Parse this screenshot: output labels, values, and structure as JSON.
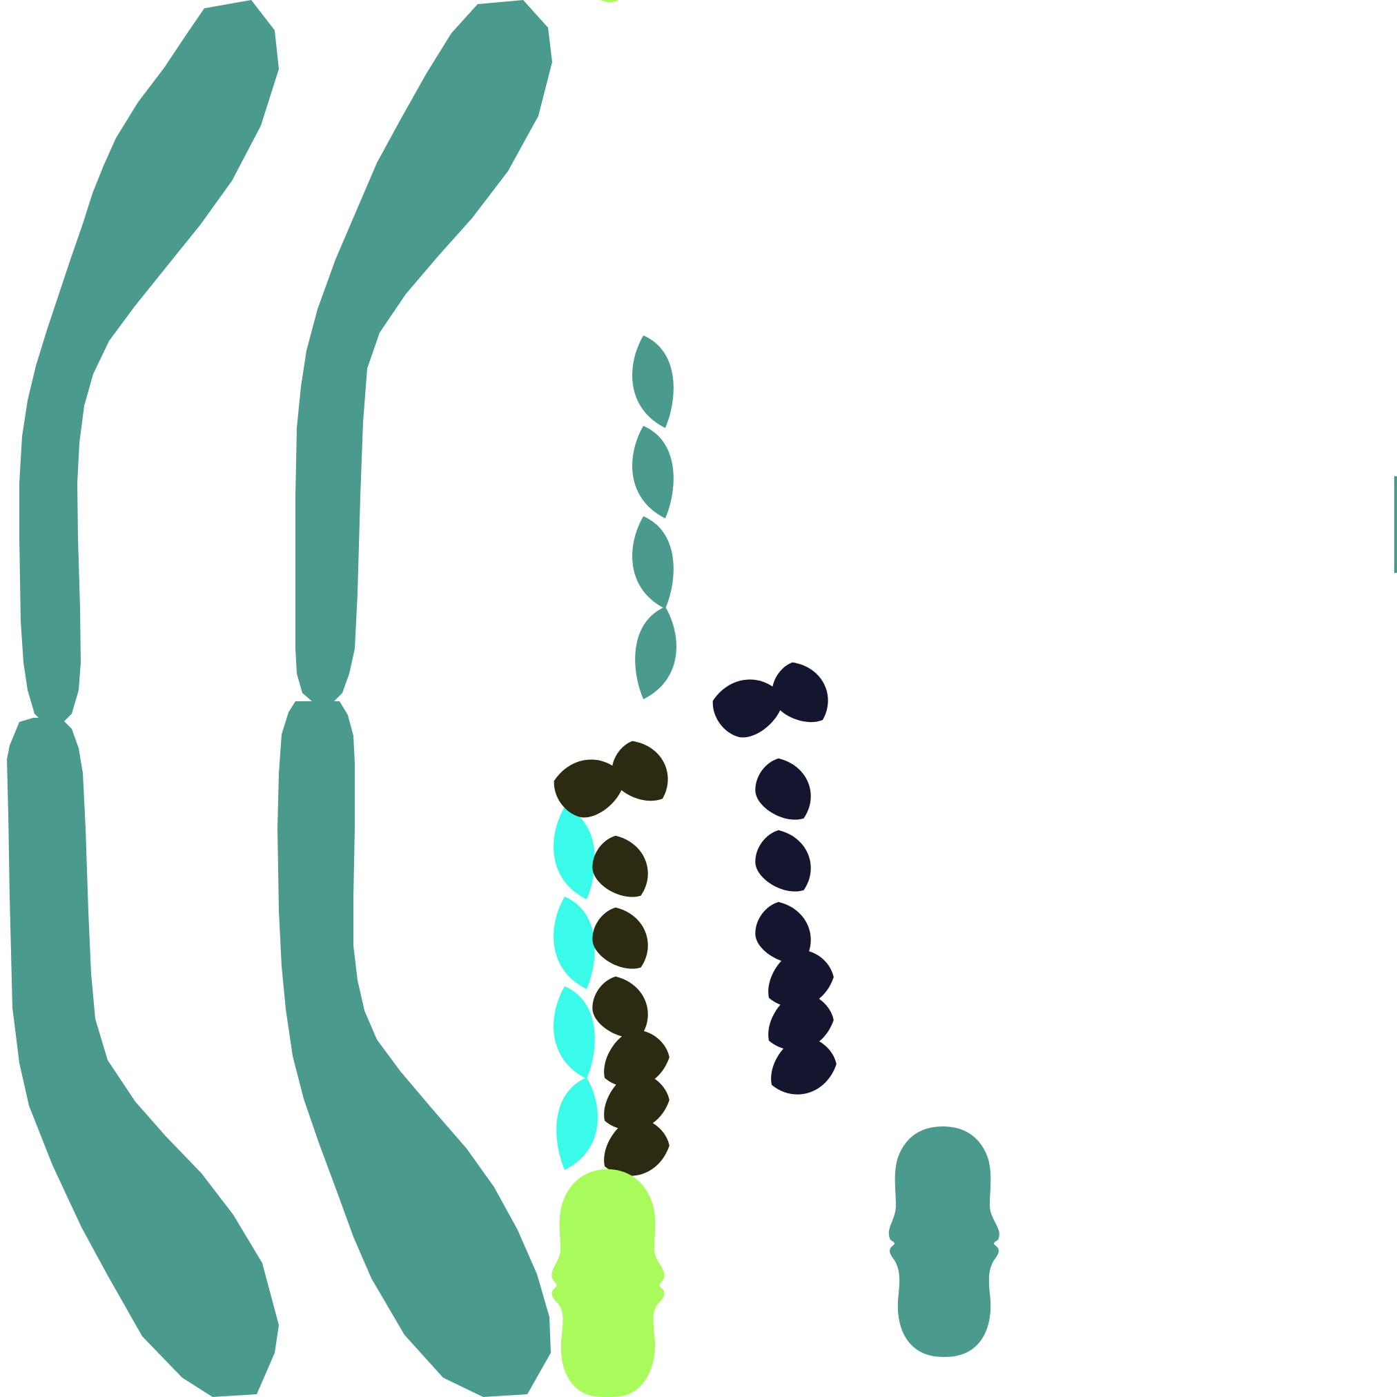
{
  "palette": {
    "background": "#ffffff",
    "teal": "#4a9a8e",
    "cyan": "#3afbe9",
    "lime": "#a8fb5a",
    "olive_dark": "#2c2b12",
    "navy": "#14152f"
  },
  "shapes": {
    "large_chromatids": {
      "count": 4,
      "color_key": "teal"
    },
    "teal_leaf_chain": {
      "count": 4,
      "color_key": "teal"
    },
    "cyan_leaf_chain": {
      "count": 4,
      "color_key": "cyan"
    },
    "olive_cup_cluster": {
      "count": 8,
      "color_key": "olive_dark"
    },
    "navy_cup_cluster": {
      "count": 8,
      "color_key": "navy"
    },
    "lime_blob": {
      "count": 1,
      "color_key": "lime"
    },
    "teal_blob": {
      "count": 1,
      "color_key": "teal"
    }
  }
}
